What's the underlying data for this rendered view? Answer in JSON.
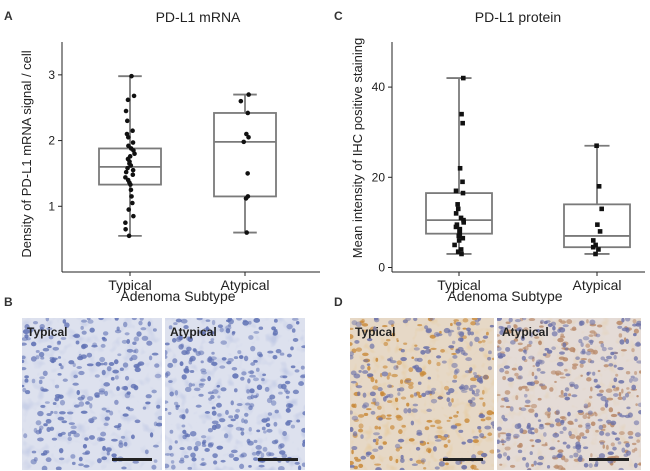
{
  "panel_letters": {
    "a": "A",
    "b": "B",
    "c": "C",
    "d": "D"
  },
  "xlabel": "Adenoma Subtype",
  "chart_data": [
    {
      "type": "box",
      "title": "PD-L1 mRNA",
      "xlabel": "Adenoma Subtype",
      "ylabel": "Density of PD-L1 mRNA signal / cell",
      "categories": [
        "Typical",
        "Atypical"
      ],
      "ylim": [
        0,
        3.5
      ],
      "yticks": [
        1,
        2,
        3
      ],
      "grid": false,
      "boxes": [
        {
          "category": "Typical",
          "min": 0.55,
          "q1": 1.33,
          "median": 1.6,
          "q3": 1.88,
          "max": 2.98
        },
        {
          "category": "Atypical",
          "min": 0.6,
          "q1": 1.15,
          "median": 1.98,
          "q3": 2.42,
          "max": 2.7
        }
      ],
      "points": [
        {
          "category": "Typical",
          "values": [
            2.98,
            2.68,
            2.62,
            2.45,
            2.3,
            2.15,
            2.1,
            2.05,
            1.97,
            1.92,
            1.88,
            1.85,
            1.8,
            1.76,
            1.72,
            1.68,
            1.65,
            1.62,
            1.58,
            1.55,
            1.52,
            1.48,
            1.44,
            1.4,
            1.36,
            1.33,
            1.25,
            1.15,
            1.05,
            0.95,
            0.85,
            0.75,
            0.65,
            0.55
          ]
        },
        {
          "category": "Atypical",
          "values": [
            2.7,
            2.6,
            2.42,
            2.1,
            2.05,
            1.98,
            1.5,
            1.15,
            1.12,
            0.6
          ]
        }
      ]
    },
    {
      "type": "box",
      "title": "PD-L1 protein",
      "xlabel": "Adenoma Subtype",
      "ylabel": "Mean intensity of IHC positive staining",
      "categories": [
        "Typical",
        "Atypical"
      ],
      "ylim": [
        -1,
        50
      ],
      "yticks": [
        0,
        20,
        40
      ],
      "grid": false,
      "boxes": [
        {
          "category": "Typical",
          "min": 3,
          "q1": 7.5,
          "median": 10.5,
          "q3": 16.5,
          "max": 42
        },
        {
          "category": "Atypical",
          "min": 3,
          "q1": 4.5,
          "median": 7,
          "q3": 14,
          "max": 27
        }
      ],
      "points": [
        {
          "category": "Typical",
          "values": [
            42,
            34,
            32,
            22,
            19,
            17,
            16.5,
            14,
            13,
            12,
            11,
            10.5,
            10,
            9.5,
            9,
            8.5,
            8,
            7.5,
            7,
            6.5,
            6,
            5,
            4,
            3.5,
            3
          ]
        },
        {
          "category": "Atypical",
          "values": [
            27,
            18,
            13,
            9.5,
            8,
            6,
            5,
            4.5,
            4,
            3
          ]
        }
      ]
    }
  ],
  "micrographs": {
    "b": {
      "left_label": "Typical",
      "right_label": "Atypical"
    },
    "d": {
      "left_label": "Typical",
      "right_label": "Atypical"
    }
  },
  "colors": {
    "box_stroke": "#7a7a7a",
    "point": "#111111",
    "he_background": "#dde1ee",
    "he_nuclei": "#5f71b4",
    "ihc_background": "#e6d8c6",
    "ihc_stain": "#c98a3a",
    "ihc_nuclei": "#6a70a8",
    "scale_bar": "#222222"
  }
}
